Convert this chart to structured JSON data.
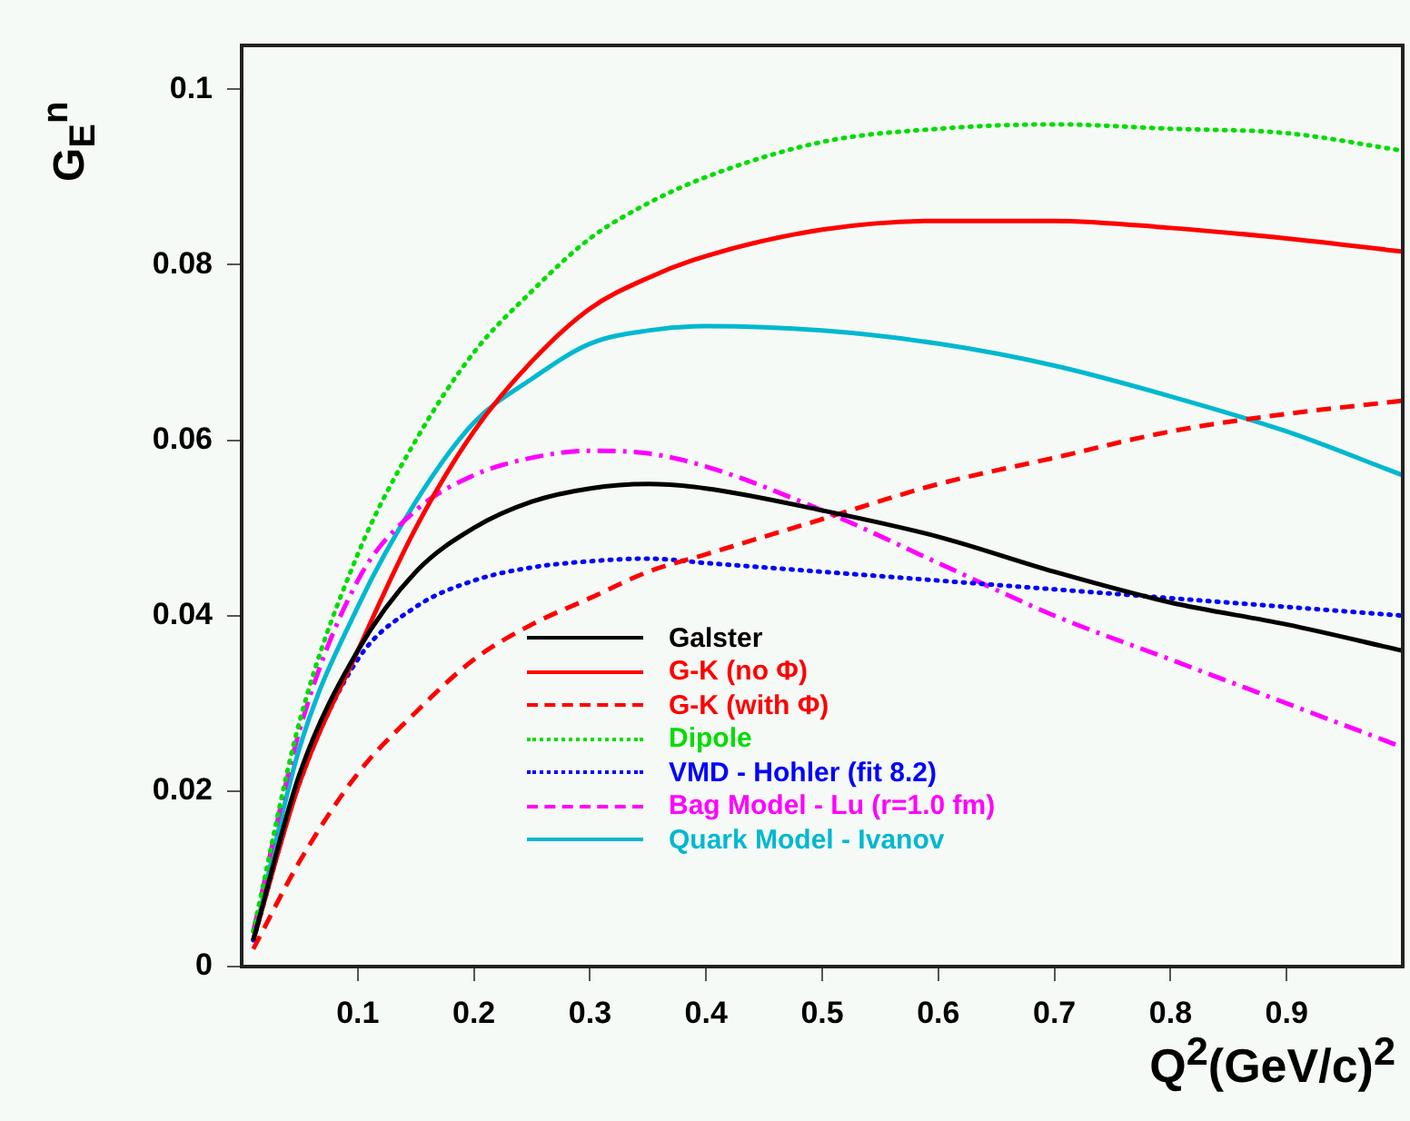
{
  "chart_data": {
    "type": "line",
    "xlabel": "Q$^{2}$(GeV/c)$^{2}$",
    "ylabel": "G$_{E}$$^{n}$",
    "xlim": [
      0,
      1
    ],
    "xticks": [
      0.1,
      0.2,
      0.3,
      0.4,
      0.5,
      0.6,
      0.7,
      0.8,
      0.9
    ],
    "ylim": [
      0,
      0.105
    ],
    "yticks": [
      0,
      0.02,
      0.04,
      0.06,
      0.08,
      0.1
    ],
    "grid": false,
    "legend": "bottom",
    "marker": "none",
    "x": [
      0.01,
      0.05,
      0.1,
      0.15,
      0.2,
      0.25,
      0.3,
      0.35,
      0.4,
      0.5,
      0.6,
      0.7,
      0.8,
      0.9,
      1.0
    ],
    "series": [
      {
        "name": "Galster",
        "color": "#000000",
        "line_style": "solid",
        "values": [
          0.003,
          0.022,
          0.036,
          0.045,
          0.05,
          0.053,
          0.0545,
          0.055,
          0.0545,
          0.052,
          0.049,
          0.045,
          0.0415,
          0.039,
          0.036
        ]
      },
      {
        "name": "G-K (no Φ)",
        "color": "#ff0000",
        "line_style": "solid",
        "values": [
          0.003,
          0.021,
          0.036,
          0.05,
          0.061,
          0.069,
          0.075,
          0.0785,
          0.081,
          0.084,
          0.085,
          0.085,
          0.0842,
          0.083,
          0.0815
        ]
      },
      {
        "name": "G-K (with Φ)",
        "color": "#ff0000",
        "line_style": "dashed",
        "values": [
          0.002,
          0.012,
          0.022,
          0.029,
          0.035,
          0.039,
          0.042,
          0.045,
          0.047,
          0.051,
          0.055,
          0.058,
          0.061,
          0.063,
          0.0645
        ]
      },
      {
        "name": "Dipole",
        "color": "#00dd00",
        "line_style": "dotted",
        "values": [
          0.004,
          0.028,
          0.047,
          0.06,
          0.07,
          0.077,
          0.083,
          0.087,
          0.09,
          0.094,
          0.0955,
          0.096,
          0.0955,
          0.095,
          0.093
        ]
      },
      {
        "name": "VMD - Hohler (fit 8.2)",
        "color": "#0000ff",
        "line_style": "dotted",
        "values": [
          0.003,
          0.021,
          0.035,
          0.041,
          0.044,
          0.0455,
          0.0462,
          0.0465,
          0.046,
          0.045,
          0.044,
          0.043,
          0.042,
          0.041,
          0.04
        ]
      },
      {
        "name": "Bag Model - Lu (r=1.0 fm)",
        "color": "#ff00ff",
        "line_style": "dashdot",
        "values": [
          0.004,
          0.027,
          0.044,
          0.052,
          0.056,
          0.058,
          0.0588,
          0.0585,
          0.057,
          0.052,
          0.046,
          0.04,
          0.035,
          0.03,
          0.025
        ]
      },
      {
        "name": "Quark Model - Ivanov",
        "color": "#00b8d0",
        "line_style": "solid",
        "values": [
          0.003,
          0.025,
          0.041,
          0.053,
          0.062,
          0.067,
          0.071,
          0.0725,
          0.073,
          0.0725,
          0.071,
          0.0685,
          0.065,
          0.061,
          0.056
        ]
      }
    ]
  }
}
